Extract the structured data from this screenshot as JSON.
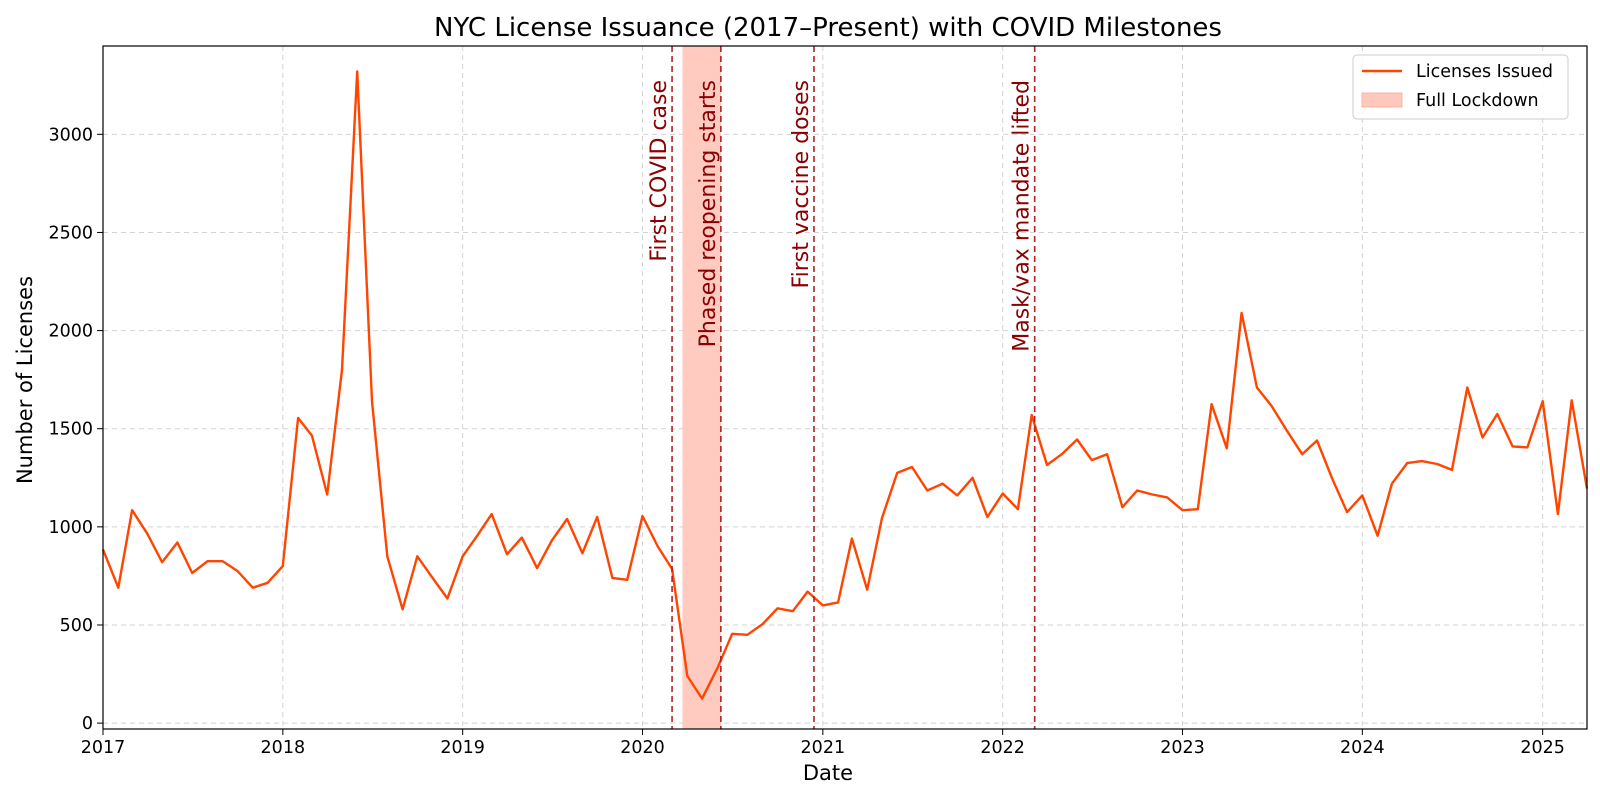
{
  "chart_data": {
    "type": "line",
    "title": "NYC License Issuance (2017–Present) with COVID Milestones",
    "xlabel": "Date",
    "ylabel": "Number of Licenses",
    "xlim": [
      "2017-01-01",
      "2025-04-01"
    ],
    "ylim": [
      -30,
      3450
    ],
    "x_ticks": [
      "2017",
      "2018",
      "2019",
      "2020",
      "2021",
      "2022",
      "2023",
      "2024",
      "2025"
    ],
    "y_ticks": [
      0,
      500,
      1000,
      1500,
      2000,
      2500,
      3000
    ],
    "grid": true,
    "legend_position": "top-right",
    "series": [
      {
        "name": "Licenses Issued",
        "color": "#ff4500",
        "x": [
          "2017-01",
          "2017-02",
          "2017-03",
          "2017-04",
          "2017-05",
          "2017-06",
          "2017-07",
          "2017-08",
          "2017-09",
          "2017-10",
          "2017-11",
          "2017-12",
          "2018-01",
          "2018-02",
          "2018-03",
          "2018-04",
          "2018-05",
          "2018-06",
          "2018-07",
          "2018-08",
          "2018-09",
          "2018-10",
          "2018-11",
          "2018-12",
          "2019-01",
          "2019-02",
          "2019-03",
          "2019-04",
          "2019-05",
          "2019-06",
          "2019-07",
          "2019-08",
          "2019-09",
          "2019-10",
          "2019-11",
          "2019-12",
          "2020-01",
          "2020-02",
          "2020-03",
          "2020-04",
          "2020-05",
          "2020-06",
          "2020-07",
          "2020-08",
          "2020-09",
          "2020-10",
          "2020-11",
          "2020-12",
          "2021-01",
          "2021-02",
          "2021-03",
          "2021-04",
          "2021-05",
          "2021-06",
          "2021-07",
          "2021-08",
          "2021-09",
          "2021-10",
          "2021-11",
          "2021-12",
          "2022-01",
          "2022-02",
          "2022-03",
          "2022-04",
          "2022-05",
          "2022-06",
          "2022-07",
          "2022-08",
          "2022-09",
          "2022-10",
          "2022-11",
          "2022-12",
          "2023-01",
          "2023-02",
          "2023-03",
          "2023-04",
          "2023-05",
          "2023-06",
          "2023-07",
          "2023-08",
          "2023-09",
          "2023-10",
          "2023-11",
          "2023-12",
          "2024-01",
          "2024-02",
          "2024-03",
          "2024-04",
          "2024-05",
          "2024-06",
          "2024-07",
          "2024-08",
          "2024-09",
          "2024-10",
          "2024-11",
          "2024-12",
          "2025-01",
          "2025-02",
          "2025-03",
          "2025-04"
        ],
        "y": [
          885,
          690,
          1085,
          965,
          820,
          920,
          765,
          825,
          825,
          775,
          690,
          715,
          800,
          1555,
          1465,
          1165,
          1800,
          3320,
          1640,
          850,
          580,
          850,
          740,
          635,
          850,
          960,
          1065,
          860,
          945,
          790,
          930,
          1040,
          865,
          1050,
          740,
          730,
          1055,
          900,
          785,
          240,
          125,
          280,
          455,
          450,
          505,
          585,
          570,
          670,
          600,
          615,
          940,
          680,
          1045,
          1275,
          1305,
          1185,
          1220,
          1160,
          1250,
          1050,
          1170,
          1090,
          1570,
          1315,
          1370,
          1445,
          1340,
          1370,
          1100,
          1185,
          1165,
          1150,
          1085,
          1090,
          1625,
          1400,
          2090,
          1710,
          1615,
          1490,
          1370,
          1440,
          1245,
          1075,
          1160,
          955,
          1220,
          1325,
          1335,
          1320,
          1290,
          1710,
          1455,
          1575,
          1410,
          1405,
          1640,
          1065,
          1645,
          1195
        ]
      }
    ],
    "shaded_regions": [
      {
        "name": "Full Lockdown",
        "start": "2020-03-22",
        "end": "2020-06-08",
        "color": "#ffc8bd"
      }
    ],
    "annotations": [
      {
        "label": "First COVID case",
        "date": "2020-03-01"
      },
      {
        "label": "Phased reopening starts",
        "date": "2020-06-08"
      },
      {
        "label": "First vaccine doses",
        "date": "2020-12-14"
      },
      {
        "label": "Mask/vax mandate lifted",
        "date": "2022-03-07"
      }
    ],
    "annotation_color": "#8b0000"
  }
}
